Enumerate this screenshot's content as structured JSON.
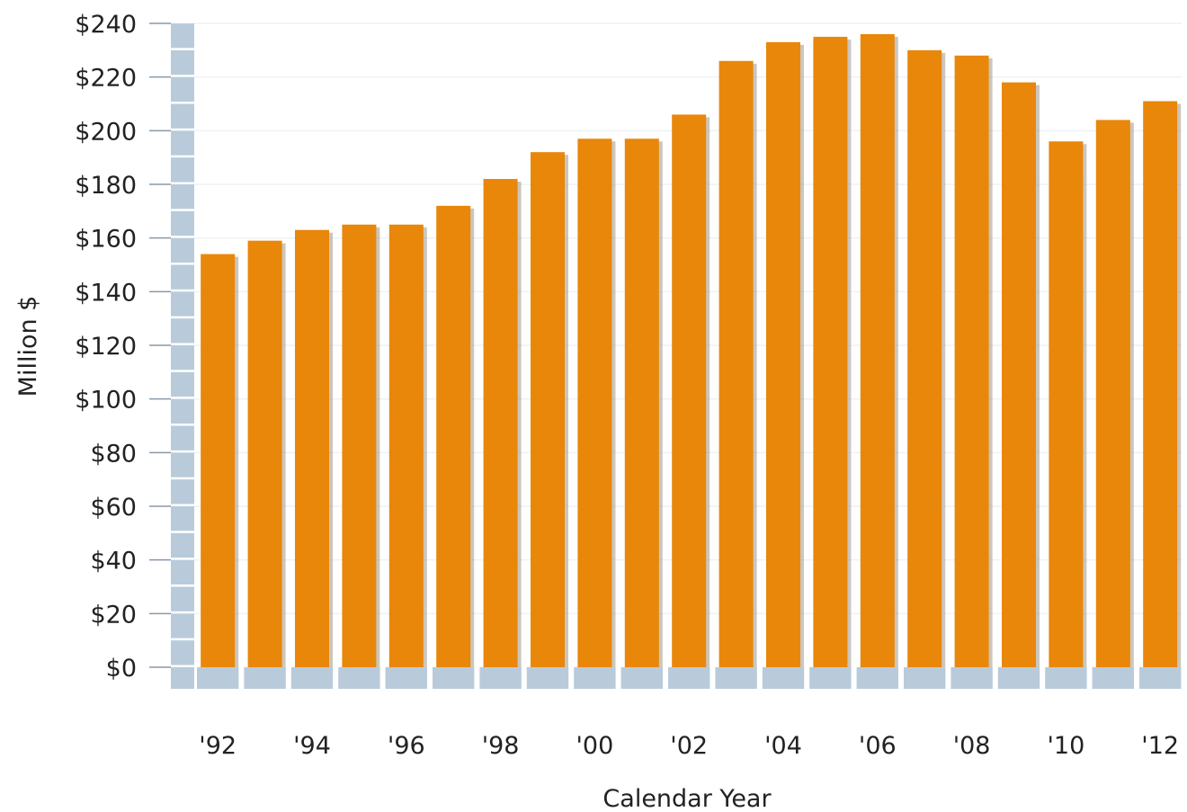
{
  "chart_data": {
    "type": "bar",
    "title": "",
    "xlabel": "Calendar Year",
    "ylabel": "Million $",
    "ylim": [
      0,
      240
    ],
    "y_ticks": [
      {
        "value": 0,
        "label": "$0"
      },
      {
        "value": 20,
        "label": "$20"
      },
      {
        "value": 40,
        "label": "$40"
      },
      {
        "value": 60,
        "label": "$60"
      },
      {
        "value": 80,
        "label": "$80"
      },
      {
        "value": 100,
        "label": "$100"
      },
      {
        "value": 120,
        "label": "$120"
      },
      {
        "value": 140,
        "label": "$140"
      },
      {
        "value": 160,
        "label": "$160"
      },
      {
        "value": 180,
        "label": "$180"
      },
      {
        "value": 200,
        "label": "$200"
      },
      {
        "value": 220,
        "label": "$220"
      },
      {
        "value": 240,
        "label": "$240"
      }
    ],
    "categories": [
      "1992",
      "1993",
      "1994",
      "1995",
      "1996",
      "1997",
      "1998",
      "1999",
      "2000",
      "2001",
      "2002",
      "2003",
      "2004",
      "2005",
      "2006",
      "2007",
      "2008",
      "2009",
      "2010",
      "2011",
      "2012"
    ],
    "x_tick_labels": [
      {
        "category": "1992",
        "label": "'92"
      },
      {
        "category": "1994",
        "label": "'94"
      },
      {
        "category": "1996",
        "label": "'96"
      },
      {
        "category": "1998",
        "label": "'98"
      },
      {
        "category": "2000",
        "label": "'00"
      },
      {
        "category": "2002",
        "label": "'02"
      },
      {
        "category": "2004",
        "label": "'04"
      },
      {
        "category": "2006",
        "label": "'06"
      },
      {
        "category": "2008",
        "label": "'08"
      },
      {
        "category": "2010",
        "label": "'10"
      },
      {
        "category": "2012",
        "label": "'12"
      }
    ],
    "values": [
      154,
      159,
      163,
      165,
      165,
      172,
      182,
      192,
      197,
      197,
      206,
      226,
      233,
      235,
      236,
      230,
      228,
      218,
      196,
      204,
      211
    ],
    "grid": true,
    "legend": "none",
    "colors": {
      "bar": "#e8870a",
      "bar_shadow": "#a09888",
      "axis_block": "#b9cbda",
      "axis_block_gap": "#ffffff",
      "grid": "#eef2f6",
      "tick": "#8899aa"
    }
  }
}
